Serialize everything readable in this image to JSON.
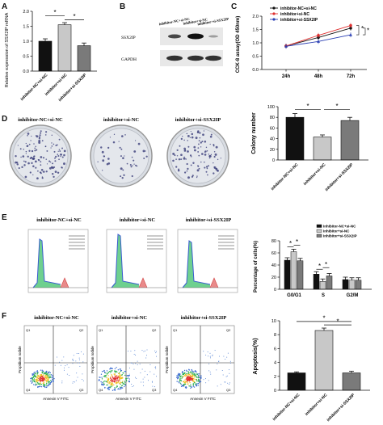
{
  "panels": {
    "A": {
      "letter": "A",
      "ylabel": "Relative expression of SSX2IP mRNA",
      "ytick_labels": [
        "0.0",
        "0.5",
        "1.0",
        "1.5",
        "2.0"
      ],
      "categories": [
        "inhibitor-NC+si-NC",
        "inhibitor+si-NC",
        "inhibitor+si-SSX2IP"
      ],
      "star": "*"
    },
    "B": {
      "letter": "B",
      "lanes": [
        "inhibitor-NC+si-NC",
        "inhibitor+si-NC",
        "inhibitor+si-SSX2IP"
      ],
      "bands": [
        "SSX2IP",
        "GAPDH"
      ]
    },
    "C": {
      "letter": "C",
      "ylabel": "CCK-8 assay(OD 450nm)",
      "ytick_labels": [
        "0.0",
        "0.5",
        "1.0",
        "1.5",
        "2.0"
      ],
      "xtick_labels": [
        "24h",
        "48h",
        "72h"
      ],
      "legend": [
        "inhibitor-NC+si-NC",
        "inhibitor+si-NC",
        "inhibitor+si-SSX2IP"
      ],
      "star": "*"
    },
    "D": {
      "letter": "D",
      "dish_titles": [
        "inhibitor-NC+si-NC",
        "inhibitor+si-NC",
        "inhibitor+si-SSX2IP"
      ],
      "ylabel": "Colony number",
      "ytick_labels": [
        "0",
        "20",
        "40",
        "60",
        "80",
        "100"
      ],
      "categories": [
        "inhibitor-NC+si-NC",
        "inhibitor+si-NC",
        "inhibitor+si-SSX2IP"
      ],
      "star": "*"
    },
    "E": {
      "letter": "E",
      "plot_titles": [
        "inhibitor-NC+si-NC",
        "inhibitor+si-NC",
        "inhibitor+si-SSX2IP"
      ],
      "ylabel": "Percentage of cells(%)",
      "ytick_labels": [
        "0",
        "20",
        "40",
        "60",
        "80"
      ],
      "groups": [
        "G0/G1",
        "S",
        "G2/M"
      ],
      "legend": [
        "inhibitor-NC+si-NC",
        "inhibitor+si-NC",
        "inhibitor+si-SSX2IP"
      ],
      "star": "*"
    },
    "F": {
      "letter": "F",
      "plot_titles": [
        "inhibitor-NC+si-NC",
        "inhibitor+si-NC",
        "inhibitor+si-SSX2IP"
      ],
      "flow_ylabel": "Propidium Iodide",
      "flow_xlabel": "Annexin V FITC",
      "quadrants": [
        "Q1",
        "Q2",
        "Q3",
        "Q4"
      ],
      "ylabel": "Apoptosis(%)",
      "ytick_labels": [
        "0",
        "2",
        "4",
        "6",
        "8",
        "10"
      ],
      "categories": [
        "inhibitor-NC+si-NC",
        "inhibitor+si-NC",
        "inhibitor+si-SSX2IP"
      ],
      "star": "*"
    }
  },
  "colors": {
    "black": "#111111",
    "gray_light": "#c8c8c8",
    "gray_dark": "#7a7a7a",
    "red": "#e03030",
    "blue": "#2b3fb3",
    "dish": "#d9dde3"
  },
  "chart_data": [
    {
      "type": "bar",
      "panel": "A",
      "categories": [
        "inhibitor-NC+si-NC",
        "inhibitor+si-NC",
        "inhibitor+si-SSX2IP"
      ],
      "values": [
        1.0,
        1.55,
        0.85
      ],
      "errors": [
        0.08,
        0.07,
        0.09
      ],
      "ylim": [
        0,
        2.0
      ],
      "ylabel": "Relative expression of SSX2IP mRNA"
    },
    {
      "type": "line",
      "panel": "C",
      "x": [
        "24h",
        "48h",
        "72h"
      ],
      "series": [
        {
          "name": "inhibitor-NC+si-NC",
          "values": [
            0.88,
            1.2,
            1.55
          ]
        },
        {
          "name": "inhibitor+si-NC",
          "values": [
            0.88,
            1.28,
            1.65
          ]
        },
        {
          "name": "inhibitor+si-SSX2IP",
          "values": [
            0.87,
            1.05,
            1.3
          ]
        }
      ],
      "ylim": [
        0,
        2.0
      ],
      "ylabel": "CCK-8 assay(OD 450nm)"
    },
    {
      "type": "bar",
      "panel": "D",
      "categories": [
        "inhibitor-NC+si-NC",
        "inhibitor+si-NC",
        "inhibitor+si-SSX2IP"
      ],
      "values": [
        80,
        43,
        74
      ],
      "errors": [
        7,
        4,
        6
      ],
      "ylim": [
        0,
        100
      ],
      "ylabel": "Colony number"
    },
    {
      "type": "bar",
      "panel": "E",
      "categories": [
        "G0/G1",
        "S",
        "G2/M"
      ],
      "series": [
        {
          "name": "inhibitor-NC+si-NC",
          "values": [
            48,
            25,
            16
          ]
        },
        {
          "name": "inhibitor+si-NC",
          "values": [
            62,
            13,
            15
          ]
        },
        {
          "name": "inhibitor+si-SSX2IP",
          "values": [
            47,
            22,
            15
          ]
        }
      ],
      "ylim": [
        0,
        80
      ],
      "ylabel": "Percentage of cells(%)"
    },
    {
      "type": "bar",
      "panel": "F",
      "categories": [
        "inhibitor-NC+si-NC",
        "inhibitor+si-NC",
        "inhibitor+si-SSX2IP"
      ],
      "values": [
        2.5,
        8.6,
        2.5
      ],
      "errors": [
        0.15,
        0.35,
        0.25
      ],
      "ylim": [
        0,
        10
      ],
      "ylabel": "Apoptosis(%)"
    }
  ]
}
